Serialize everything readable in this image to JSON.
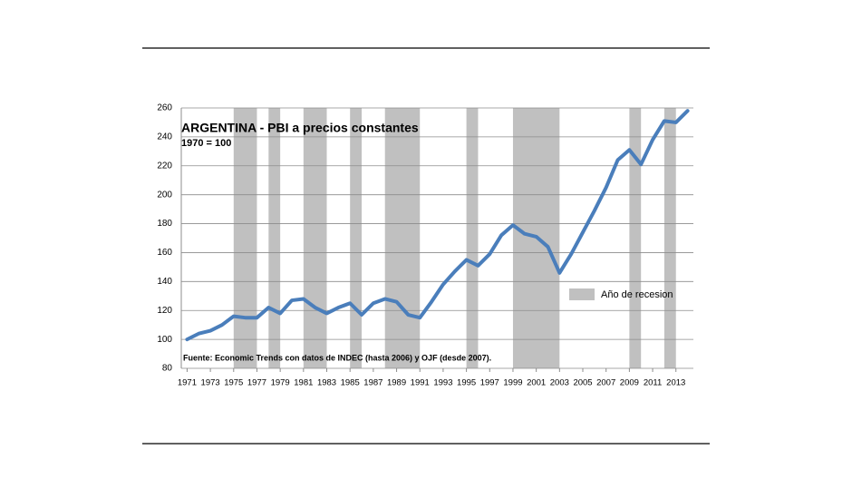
{
  "chart_data": {
    "type": "line",
    "title": "ARGENTINA - PBI a precios constantes",
    "subtitle": "1970 = 100",
    "source": "Fuente: Economic Trends con datos de INDEC (hasta 2006) y OJF (desde 2007).",
    "x": [
      1971,
      1972,
      1973,
      1974,
      1975,
      1976,
      1977,
      1978,
      1979,
      1980,
      1981,
      1982,
      1983,
      1984,
      1985,
      1986,
      1987,
      1988,
      1989,
      1990,
      1991,
      1992,
      1993,
      1994,
      1995,
      1996,
      1997,
      1998,
      1999,
      2000,
      2001,
      2002,
      2003,
      2004,
      2005,
      2006,
      2007,
      2008,
      2009,
      2010,
      2011,
      2012,
      2013,
      2014
    ],
    "values": [
      100,
      104,
      106,
      110,
      116,
      115,
      115,
      122,
      118,
      127,
      128,
      122,
      118,
      122,
      125,
      117,
      125,
      128,
      126,
      117,
      115,
      126,
      138,
      147,
      155,
      151,
      159,
      172,
      179,
      173,
      171,
      164,
      146,
      159,
      174,
      189,
      205,
      224,
      231,
      221,
      238,
      251,
      250,
      258
    ],
    "color": "#4a7ebb",
    "recessions": {
      "label": "Año de recesion",
      "color": "#c0c0c0",
      "periods": [
        [
          1975,
          1977
        ],
        [
          1978,
          1979
        ],
        [
          1981,
          1983
        ],
        [
          1985,
          1986
        ],
        [
          1988,
          1991
        ],
        [
          1995,
          1996
        ],
        [
          1999,
          2003
        ],
        [
          2009,
          2010
        ],
        [
          2012,
          2013
        ]
      ]
    },
    "xlim": [
      1970.5,
      2014.5
    ],
    "xticks": [
      1971,
      1973,
      1975,
      1977,
      1979,
      1981,
      1983,
      1985,
      1987,
      1989,
      1991,
      1993,
      1995,
      1997,
      1999,
      2001,
      2003,
      2005,
      2007,
      2009,
      2011,
      2013
    ],
    "ylim": [
      80,
      260
    ],
    "yticks": [
      80,
      100,
      120,
      140,
      160,
      180,
      200,
      220,
      240,
      260
    ],
    "grid": true
  }
}
